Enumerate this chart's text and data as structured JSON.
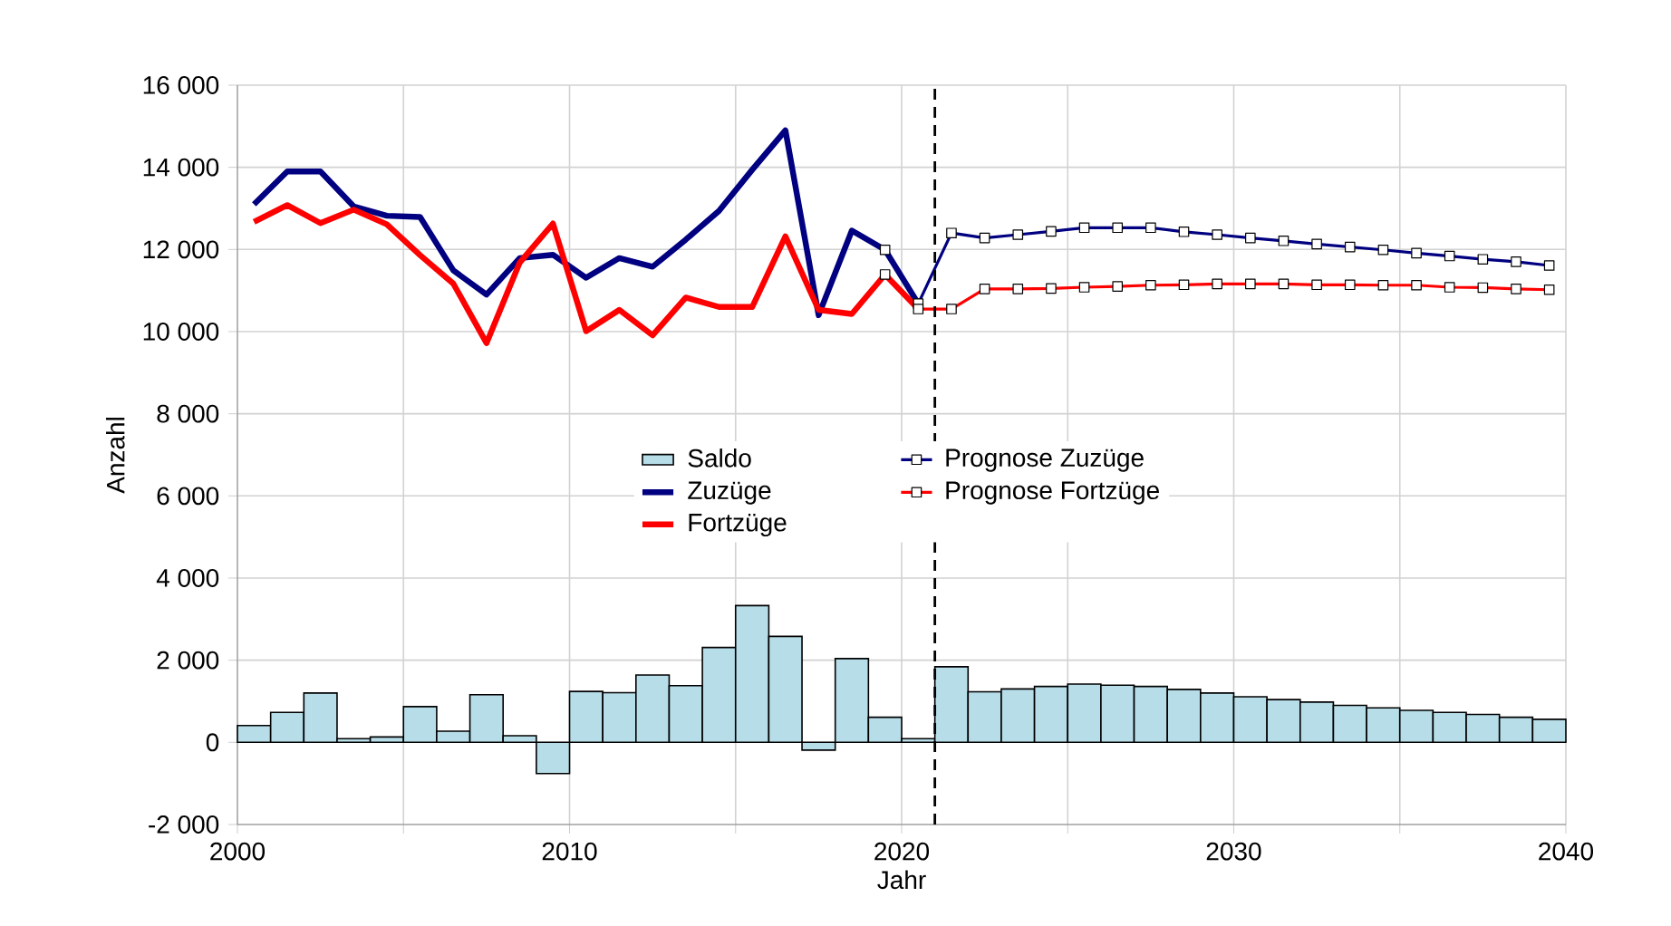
{
  "chart_data": {
    "type": "line",
    "xlabel": "Jahr",
    "ylabel": "Anzahl",
    "xlim": [
      2000,
      2040
    ],
    "xticks": [
      2000,
      {
        "value": 2005,
        "label": null
      },
      2010,
      {
        "value": 2015,
        "label": null
      },
      2020,
      {
        "value": 2025,
        "label": null
      },
      2030,
      {
        "value": 2035,
        "label": null
      },
      2040
    ],
    "ylim": [
      -2000,
      16000
    ],
    "yticks": [
      {
        "value": -2000,
        "label": "-2 000"
      },
      0,
      {
        "value": 2000,
        "label": "2 000"
      },
      {
        "value": 4000,
        "label": "4 000"
      },
      {
        "value": 6000,
        "label": "6 000"
      },
      {
        "value": 8000,
        "label": "8 000"
      },
      {
        "value": 10000,
        "label": "10 000"
      },
      {
        "value": 12000,
        "label": "12 000"
      },
      {
        "value": 14000,
        "label": "14 000"
      },
      {
        "value": 16000,
        "label": "16 000"
      }
    ],
    "grid": true,
    "legend": "center",
    "ref_lines": [
      {
        "axis": "x",
        "value": 2021,
        "color": "#000000",
        "line_style": "dashed"
      }
    ],
    "series": [
      {
        "name": "Saldo",
        "type": "bar",
        "color": "#b7dde8",
        "x": [
          2000.5,
          2001.5,
          2002.5,
          2003.5,
          2004.5,
          2005.5,
          2006.5,
          2007.5,
          2008.5,
          2009.5,
          2010.5,
          2011.5,
          2012.5,
          2013.5,
          2014.5,
          2015.5,
          2016.5,
          2017.5,
          2018.5,
          2019.5,
          2020.5,
          2021.5,
          2022.5,
          2023.5,
          2024.5,
          2025.5,
          2026.5,
          2027.5,
          2028.5,
          2029.5,
          2030.5,
          2031.5,
          2032.5,
          2033.5,
          2034.5,
          2035.5,
          2036.5,
          2037.5,
          2038.5,
          2039.5
        ],
        "values": [
          410,
          730,
          1200,
          90,
          130,
          870,
          270,
          1160,
          160,
          -760,
          1240,
          1210,
          1640,
          1380,
          2310,
          3330,
          2580,
          -190,
          2040,
          610,
          90,
          1840,
          1230,
          1300,
          1360,
          1420,
          1390,
          1360,
          1290,
          1200,
          1110,
          1040,
          980,
          900,
          840,
          780,
          730,
          680,
          610,
          560
        ]
      },
      {
        "name": "Zuzüge",
        "color": "#000080",
        "marker": "none",
        "x": [
          2000.5,
          2001.5,
          2002.5,
          2003.5,
          2004.5,
          2005.5,
          2006.5,
          2007.5,
          2008.5,
          2009.5,
          2010.5,
          2011.5,
          2012.5,
          2013.5,
          2014.5,
          2015.5,
          2016.5,
          2017.5,
          2018.5,
          2019.5,
          2020.5
        ],
        "values": [
          13100,
          13900,
          13900,
          13050,
          12820,
          12790,
          11490,
          10900,
          11790,
          11870,
          11310,
          11790,
          11580,
          12240,
          12940,
          13940,
          14900,
          10400,
          12460,
          11990,
          10680
        ]
      },
      {
        "name": "Fortzüge",
        "color": "#ff0000",
        "marker": "none",
        "x": [
          2000.5,
          2001.5,
          2002.5,
          2003.5,
          2004.5,
          2005.5,
          2006.5,
          2007.5,
          2008.5,
          2009.5,
          2010.5,
          2011.5,
          2012.5,
          2013.5,
          2014.5,
          2015.5,
          2016.5,
          2017.5,
          2018.5,
          2019.5,
          2020.5
        ],
        "values": [
          12670,
          13080,
          12640,
          12970,
          12610,
          11860,
          11170,
          9720,
          11680,
          12630,
          10010,
          10530,
          9910,
          10830,
          10600,
          10600,
          12320,
          10530,
          10430,
          11390,
          10550
        ]
      },
      {
        "name": "Prognose Zuzüge",
        "color": "#000080",
        "marker": "square",
        "x": [
          2019.5,
          2020.5,
          2021.5,
          2022.5,
          2023.5,
          2024.5,
          2025.5,
          2026.5,
          2027.5,
          2028.5,
          2029.5,
          2030.5,
          2031.5,
          2032.5,
          2033.5,
          2034.5,
          2035.5,
          2036.5,
          2037.5,
          2038.5,
          2039.5
        ],
        "values": [
          11990,
          10680,
          12400,
          12280,
          12360,
          12440,
          12530,
          12530,
          12530,
          12430,
          12360,
          12280,
          12210,
          12130,
          12060,
          11990,
          11910,
          11840,
          11760,
          11700,
          11610
        ]
      },
      {
        "name": "Prognose Fortzüge",
        "color": "#ff0000",
        "marker": "square",
        "x": [
          2019.5,
          2020.5,
          2021.5,
          2022.5,
          2023.5,
          2024.5,
          2025.5,
          2026.5,
          2027.5,
          2028.5,
          2029.5,
          2030.5,
          2031.5,
          2032.5,
          2033.5,
          2034.5,
          2035.5,
          2036.5,
          2037.5,
          2038.5,
          2039.5
        ],
        "values": [
          11390,
          10550,
          10550,
          11040,
          11040,
          11050,
          11080,
          11100,
          11130,
          11140,
          11160,
          11160,
          11160,
          11140,
          11140,
          11130,
          11130,
          11080,
          11070,
          11040,
          11020
        ]
      }
    ]
  }
}
